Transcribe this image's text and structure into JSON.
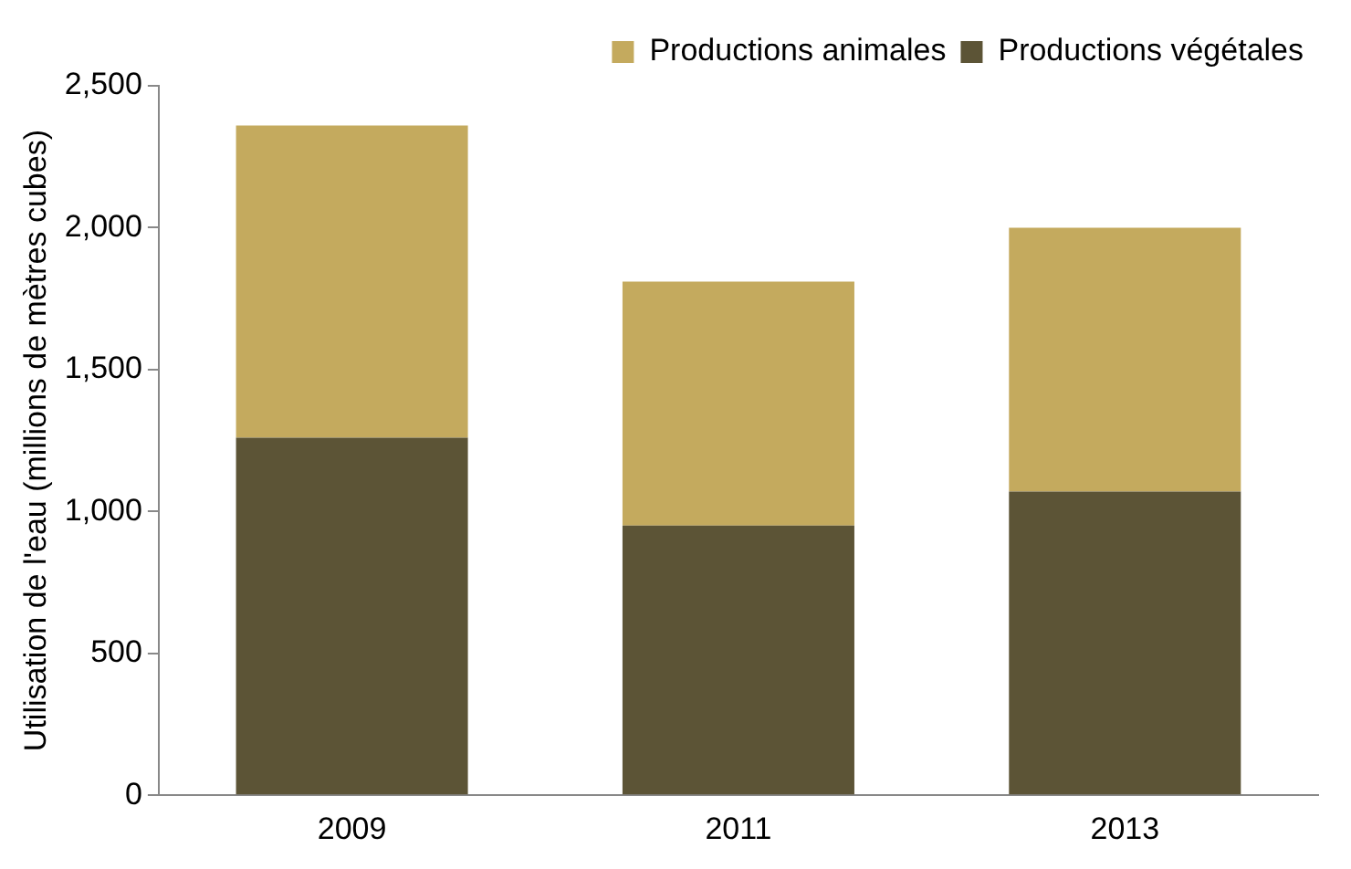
{
  "chart_data": {
    "type": "bar",
    "stacked": true,
    "ylabel": "Utilisation de l'eau (millions de mètres cubes)",
    "categories": [
      "2009",
      "2011",
      "2013"
    ],
    "series": [
      {
        "name": "Productions végétales",
        "color": "#5c5436",
        "values": [
          1260,
          950,
          1070
        ]
      },
      {
        "name": "Productions animales",
        "color": "#c4aa5e",
        "values": [
          1100,
          860,
          930
        ]
      }
    ],
    "ylim": [
      0,
      2500
    ],
    "yticks": [
      {
        "value": 0,
        "label": "0"
      },
      {
        "value": 500,
        "label": "500"
      },
      {
        "value": 1000,
        "label": "1,000"
      },
      {
        "value": 1500,
        "label": "1,500"
      },
      {
        "value": 2000,
        "label": "2,000"
      },
      {
        "value": 2500,
        "label": "2,500"
      }
    ],
    "grid": false,
    "legend": "top right"
  }
}
